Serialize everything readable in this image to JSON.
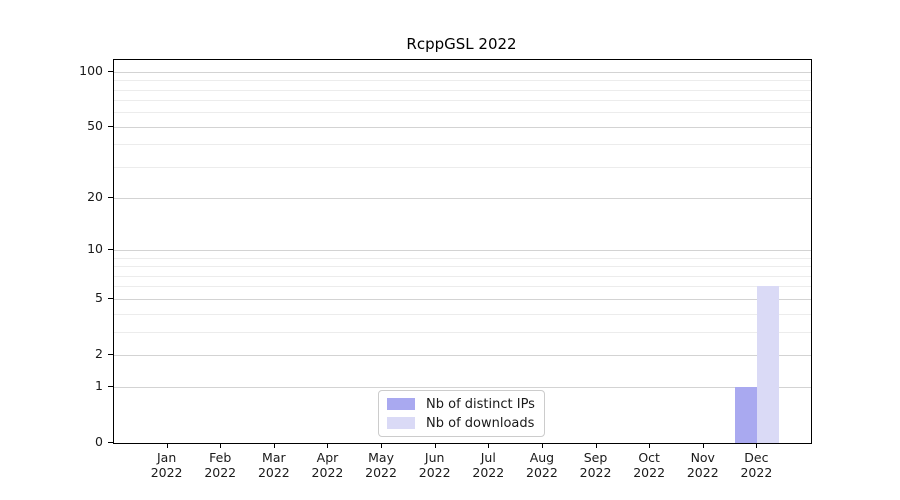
{
  "title": "RcppGSL 2022",
  "chart_data": {
    "type": "bar",
    "title": "RcppGSL 2022",
    "x_categories_month": [
      "Jan",
      "Feb",
      "Mar",
      "Apr",
      "May",
      "Jun",
      "Jul",
      "Aug",
      "Sep",
      "Oct",
      "Nov",
      "Dec"
    ],
    "x_categories_year": "2022",
    "series": [
      {
        "name": "Nb of distinct IPs",
        "color": "#a9a9f0",
        "values": [
          0,
          0,
          0,
          0,
          0,
          0,
          0,
          0,
          0,
          0,
          0,
          1
        ]
      },
      {
        "name": "Nb of downloads",
        "color": "#dadaf6",
        "values": [
          0,
          0,
          0,
          0,
          0,
          0,
          0,
          0,
          0,
          0,
          0,
          6
        ]
      }
    ],
    "y_scale": "log1p",
    "y_tick_labels": [
      0,
      1,
      2,
      5,
      10,
      20,
      50,
      100
    ],
    "y_minor_gridlines": [
      3,
      4,
      6,
      7,
      8,
      9,
      30,
      40,
      60,
      70,
      80,
      90
    ],
    "ylim": [
      0,
      116
    ],
    "grid": true,
    "legend_position": "bottom-center"
  },
  "colors": {
    "background": "#ffffff",
    "spine": "#000000",
    "major_grid": "#d3d3d3",
    "minor_grid": "#ececec",
    "text": "#1a1a1a",
    "bar_distinct_ips": "#a9a9f0",
    "bar_downloads": "#dadaf6",
    "legend_border": "#cccccc"
  }
}
